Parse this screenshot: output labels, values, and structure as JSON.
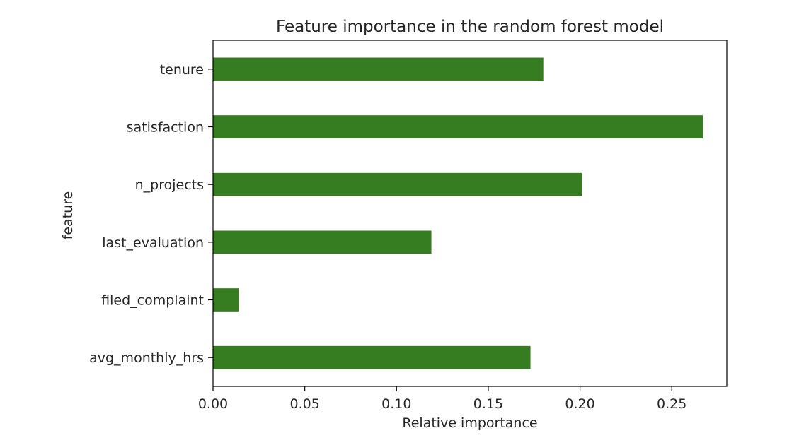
{
  "chart_data": {
    "type": "bar",
    "orientation": "horizontal",
    "title": "Feature importance in the random forest model",
    "xlabel": "Relative importance",
    "ylabel": "feature",
    "categories": [
      "tenure",
      "satisfaction",
      "n_projects",
      "last_evaluation",
      "filed_complaint",
      "avg_monthly_hrs"
    ],
    "values": [
      0.18,
      0.267,
      0.201,
      0.119,
      0.014,
      0.173
    ],
    "xlim": [
      0,
      0.28
    ],
    "xticks": [
      0.0,
      0.05,
      0.1,
      0.15,
      0.2,
      0.25
    ],
    "xtick_labels": [
      "0.00",
      "0.05",
      "0.10",
      "0.15",
      "0.20",
      "0.25"
    ],
    "bar_color": "#367c21",
    "grid": false,
    "legend": "none"
  }
}
